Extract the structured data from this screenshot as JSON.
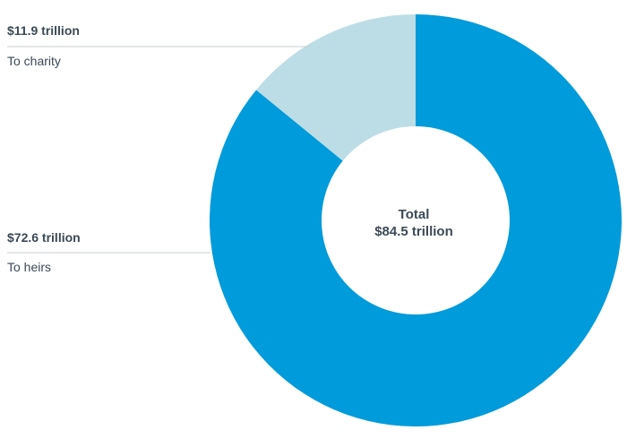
{
  "chart_data": {
    "type": "pie",
    "donut": true,
    "legend": "left-callouts",
    "center": {
      "title": "Total",
      "value": "$84.5 trillion",
      "total": 84.5
    },
    "slices": [
      {
        "name": "To heirs",
        "value": 72.6,
        "label": "$72.6 trillion",
        "color": "#009bdb"
      },
      {
        "name": "To charity",
        "value": 11.9,
        "label": "$11.9 trillion",
        "color": "#bcdde5"
      }
    ]
  }
}
